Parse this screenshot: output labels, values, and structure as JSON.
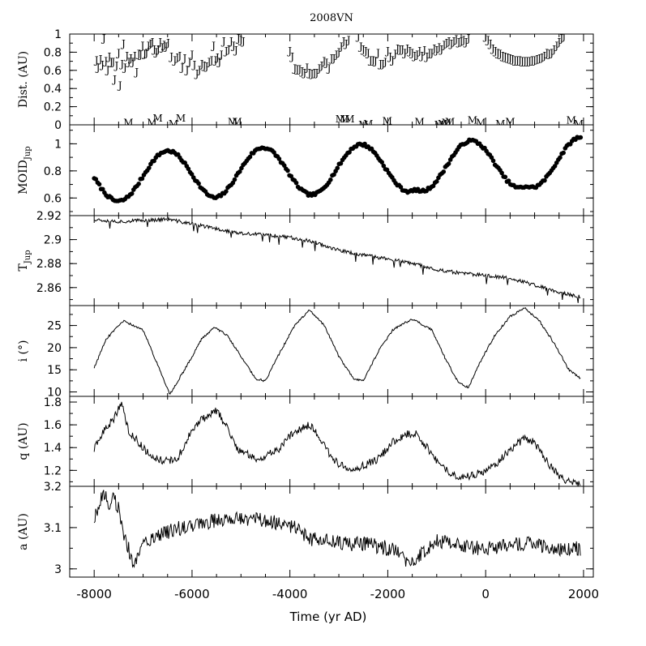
{
  "chart_data": [
    {
      "type": "scatter",
      "title": "2008VN",
      "ylabel": "Dist. (AU)",
      "xlim": [
        -8500,
        2200
      ],
      "ylim": [
        0,
        1
      ],
      "yticks": [
        "0",
        "0.2",
        "0.4",
        "0.6",
        "0.8",
        "1"
      ],
      "series": [
        {
          "marker": "J",
          "x": [
            -7950,
            -7920,
            -7870,
            -7830,
            -7800,
            -7760,
            -7720,
            -7690,
            -7650,
            -7610,
            -7580,
            -7540,
            -7500,
            -7470,
            -7430,
            -7400,
            -7370,
            -7330,
            -7290,
            -7250,
            -7210,
            -7170,
            -7130,
            -7090,
            -7050,
            -7010,
            -6970,
            -6930,
            -6890,
            -6850,
            -6810,
            -6770,
            -6730,
            -6690,
            -6650,
            -6610,
            -6570,
            -6530,
            -6490,
            -6420,
            -6350,
            -6300,
            -6250,
            -6200,
            -6150,
            -6100,
            -6050,
            -6000,
            -5950,
            -5900,
            -5850,
            -5800,
            -5750,
            -5700,
            -5650,
            -5600,
            -5560,
            -5520,
            -5480,
            -5440,
            -5400,
            -5350,
            -5300,
            -5250,
            -5200,
            -5150,
            -5100,
            -5050,
            -5000,
            -4950,
            -4000,
            -3950,
            -3900,
            -3850,
            -3800,
            -3750,
            -3700,
            -3650,
            -3600,
            -3550,
            -3500,
            -3450,
            -3400,
            -3350,
            -3300,
            -3250,
            -3200,
            -3150,
            -3100,
            -3050,
            -3000,
            -2950,
            -2900,
            -2850,
            -2800,
            -2600,
            -2550,
            -2500,
            -2450,
            -2400,
            -2350,
            -2300,
            -2250,
            -2200,
            -2150,
            -2100,
            -2050,
            -2000,
            -1950,
            -1900,
            -1850,
            -1800,
            -1750,
            -1700,
            -1650,
            -1600,
            -1550,
            -1500,
            -1450,
            -1400,
            -1350,
            -1300,
            -1250,
            -1200,
            -1150,
            -1100,
            -1050,
            -1000,
            -950,
            -900,
            -850,
            -800,
            -750,
            -700,
            -650,
            -600,
            -550,
            -500,
            -450,
            -400,
            -350,
            0,
            50,
            100,
            150,
            200,
            250,
            300,
            350,
            400,
            450,
            500,
            550,
            600,
            650,
            700,
            750,
            800,
            850,
            900,
            950,
            1000,
            1050,
            1100,
            1150,
            1200,
            1250,
            1300,
            1350,
            1400,
            1450,
            1500,
            1550,
            1600
          ],
          "y": [
            0.72,
            0.64,
            0.73,
            0.67,
            0.96,
            0.71,
            0.61,
            0.76,
            0.7,
            0.7,
            0.51,
            0.66,
            0.8,
            0.44,
            0.68,
            0.9,
            0.64,
            0.77,
            0.7,
            0.74,
            0.7,
            0.77,
            0.59,
            0.79,
            0.78,
            0.88,
            0.79,
            0.8,
            0.88,
            0.9,
            0.92,
            0.84,
            0.81,
            0.84,
            0.92,
            0.86,
            0.89,
            0.87,
            0.91,
            0.76,
            0.72,
            0.75,
            0.77,
            0.64,
            0.74,
            0.61,
            0.7,
            0.78,
            0.67,
            0.57,
            0.61,
            0.68,
            0.66,
            0.65,
            0.7,
            0.72,
            0.88,
            0.72,
            0.75,
            0.7,
            0.78,
            0.93,
            0.82,
            0.84,
            0.93,
            0.88,
            0.83,
            0.96,
            0.94,
            0.93,
            0.82,
            0.76,
            0.63,
            0.62,
            0.62,
            0.6,
            0.58,
            0.64,
            0.58,
            0.57,
            0.58,
            0.58,
            0.63,
            0.66,
            0.71,
            0.69,
            0.63,
            0.74,
            0.74,
            0.78,
            0.81,
            0.87,
            0.93,
            0.9,
            0.94,
            0.98,
            0.87,
            0.84,
            0.82,
            0.8,
            0.72,
            0.72,
            0.71,
            0.8,
            0.68,
            0.68,
            0.7,
            0.82,
            0.76,
            0.72,
            0.79,
            0.85,
            0.84,
            0.84,
            0.8,
            0.85,
            0.82,
            0.8,
            0.77,
            0.78,
            0.82,
            0.77,
            0.83,
            0.76,
            0.8,
            0.8,
            0.85,
            0.83,
            0.86,
            0.84,
            0.89,
            0.91,
            0.93,
            0.9,
            0.93,
            0.95,
            0.92,
            0.93,
            0.94,
            0.92,
            0.96,
            0.98,
            0.94,
            0.9,
            0.85,
            0.82,
            0.8,
            0.79,
            0.77,
            0.76,
            0.75,
            0.74,
            0.73,
            0.72,
            0.72,
            0.72,
            0.71,
            0.71,
            0.71,
            0.71,
            0.72,
            0.72,
            0.73,
            0.74,
            0.75,
            0.77,
            0.8,
            0.79,
            0.8,
            0.84,
            0.88,
            0.92,
            0.96,
            0.98
          ]
        },
        {
          "marker": "M",
          "x": [
            -7300,
            -6820,
            -6700,
            -6380,
            -6230,
            -5170,
            -5080,
            -2970,
            -2880,
            -2780,
            -2500,
            -2400,
            -2010,
            -1350,
            -950,
            -880,
            -800,
            -730,
            -270,
            -100,
            300,
            500,
            1750,
            1900
          ],
          "y": [
            0.03,
            0.03,
            0.08,
            0.02,
            0.08,
            0.04,
            0.04,
            0.07,
            0.07,
            0.07,
            0.01,
            0.02,
            0.05,
            0.04,
            0.01,
            0.02,
            0.03,
            0.04,
            0.06,
            0.03,
            0.02,
            0.04,
            0.06,
            0.02
          ]
        }
      ]
    },
    {
      "type": "scatter",
      "ylabel_main": "MOID",
      "ylabel_sub": "Jup",
      "xlim": [
        -8500,
        2200
      ],
      "ylim": [
        0.47,
        1.14
      ],
      "yticks": [
        "0.6",
        "0.8",
        "1"
      ],
      "model": {
        "mean": 0.8,
        "amplitude": 0.18,
        "trend": 0.12,
        "period": 2000,
        "peaks": [
          -6500,
          -4550,
          -2550,
          -300,
          1950
        ],
        "x_start": -8000,
        "x_end": 1950
      },
      "x_range": [
        -8000,
        1950
      ]
    },
    {
      "type": "line",
      "ylabel_main": "T",
      "ylabel_sub": "Jup",
      "xlim": [
        -8500,
        2200
      ],
      "ylim": [
        2.845,
        2.92
      ],
      "yticks": [
        "2.86",
        "2.88",
        "2.9",
        "2.92"
      ],
      "x": [
        -8000,
        -7500,
        -7000,
        -6500,
        -6000,
        -5500,
        -5000,
        -4500,
        -4000,
        -3500,
        -3000,
        -2500,
        -2000,
        -1500,
        -1000,
        -500,
        0,
        500,
        1000,
        1500,
        1950
      ],
      "y": [
        2.917,
        2.915,
        2.916,
        2.917,
        2.913,
        2.909,
        2.905,
        2.904,
        2.902,
        2.898,
        2.891,
        2.887,
        2.884,
        2.88,
        2.875,
        2.872,
        2.87,
        2.868,
        2.862,
        2.856,
        2.852
      ]
    },
    {
      "type": "line",
      "ylabel": "i (°)",
      "xlim": [
        -8500,
        2200
      ],
      "ylim": [
        9,
        29.5
      ],
      "yticks": [
        "10",
        "15",
        "20",
        "25"
      ],
      "x": [
        -8000,
        -7750,
        -7400,
        -7000,
        -6700,
        -6450,
        -6100,
        -5800,
        -5550,
        -5300,
        -5000,
        -4700,
        -4500,
        -4200,
        -3900,
        -3600,
        -3300,
        -3000,
        -2700,
        -2500,
        -2200,
        -1900,
        -1500,
        -1100,
        -800,
        -550,
        -350,
        -100,
        200,
        500,
        800,
        1100,
        1400,
        1700,
        1950
      ],
      "y": [
        15.5,
        22,
        26,
        24,
        16,
        9.5,
        16,
        22,
        24.5,
        23,
        18,
        13,
        12.5,
        19,
        25,
        28.5,
        25,
        18,
        13,
        12.5,
        19,
        24,
        26.5,
        24,
        17,
        12,
        11,
        17,
        23,
        27,
        29,
        26,
        21,
        15,
        13
      ]
    },
    {
      "type": "line",
      "ylabel": "q (AU)",
      "xlim": [
        -8500,
        2200
      ],
      "ylim": [
        1.06,
        1.85
      ],
      "yticks": [
        "1.2",
        "1.4",
        "1.6",
        "1.8"
      ],
      "x": [
        -8000,
        -7800,
        -7600,
        -7450,
        -7300,
        -7100,
        -6900,
        -6700,
        -6500,
        -6300,
        -6000,
        -5800,
        -5500,
        -5300,
        -5100,
        -4900,
        -4700,
        -4500,
        -4200,
        -3900,
        -3600,
        -3400,
        -3200,
        -3000,
        -2700,
        -2500,
        -2200,
        -1900,
        -1600,
        -1400,
        -1200,
        -1000,
        -800,
        -600,
        -400,
        -200,
        0,
        200,
        400,
        600,
        800,
        950,
        1100,
        1300,
        1500,
        1700,
        1950
      ],
      "y": [
        1.38,
        1.55,
        1.65,
        1.8,
        1.55,
        1.45,
        1.35,
        1.3,
        1.28,
        1.3,
        1.55,
        1.65,
        1.72,
        1.6,
        1.4,
        1.35,
        1.3,
        1.32,
        1.4,
        1.55,
        1.6,
        1.5,
        1.35,
        1.25,
        1.22,
        1.24,
        1.3,
        1.45,
        1.52,
        1.52,
        1.4,
        1.28,
        1.2,
        1.15,
        1.14,
        1.17,
        1.2,
        1.25,
        1.35,
        1.42,
        1.48,
        1.46,
        1.38,
        1.25,
        1.15,
        1.1,
        1.08
      ]
    },
    {
      "type": "line",
      "ylabel": "a (AU)",
      "xlim": [
        -8500,
        2200
      ],
      "ylim": [
        2.98,
        3.2
      ],
      "yticks": [
        "3",
        "3.1",
        "3.2"
      ],
      "x": [
        -8000,
        -7900,
        -7800,
        -7700,
        -7600,
        -7500,
        -7400,
        -7300,
        -7200,
        -7100,
        -7000,
        -6800,
        -6500,
        -6200,
        -5800,
        -5400,
        -5000,
        -4600,
        -4200,
        -3800,
        -3700,
        -3500,
        -3200,
        -2800,
        -2400,
        -2000,
        -1700,
        -1600,
        -1400,
        -1200,
        -1000,
        -600,
        -200,
        200,
        600,
        1000,
        1400,
        1800,
        1950
      ],
      "y": [
        3.12,
        3.16,
        3.18,
        3.16,
        3.17,
        3.15,
        3.08,
        3.05,
        3.0,
        3.03,
        3.08,
        3.07,
        3.09,
        3.1,
        3.11,
        3.12,
        3.12,
        3.12,
        3.11,
        3.1,
        3.08,
        3.07,
        3.07,
        3.06,
        3.06,
        3.05,
        3.04,
        3.01,
        3.03,
        3.05,
        3.07,
        3.06,
        3.05,
        3.05,
        3.06,
        3.06,
        3.05,
        3.05,
        3.05
      ]
    }
  ],
  "xaxis": {
    "label": "Time (yr AD)",
    "ticks": [
      "-8000",
      "-6000",
      "-4000",
      "-2000",
      "0",
      "2000"
    ]
  }
}
